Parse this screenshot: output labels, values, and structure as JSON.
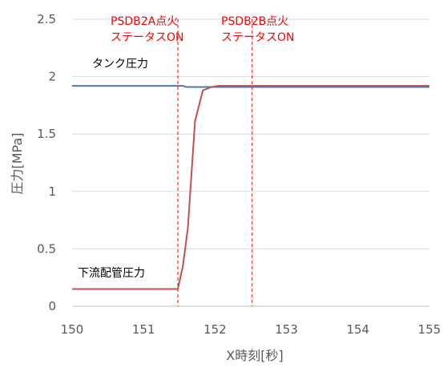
{
  "chart_data": {
    "type": "line",
    "xlabel": "X時刻[秒]",
    "ylabel": "圧力[MPa]",
    "xlim": [
      150,
      155
    ],
    "ylim": [
      0,
      2.5
    ],
    "x_ticks": [
      "150",
      "151",
      "152",
      "153",
      "154",
      "155"
    ],
    "y_ticks": [
      "0",
      "0.5",
      "1",
      "1.5",
      "2",
      "2.5"
    ],
    "grid": "horizontal",
    "series": [
      {
        "name": "タンク圧力",
        "color": "#4a7ab0",
        "points": [
          [
            150,
            1.92
          ],
          [
            151.55,
            1.92
          ],
          [
            151.6,
            1.91
          ],
          [
            152,
            1.91
          ],
          [
            155,
            1.91
          ]
        ]
      },
      {
        "name": "下流配管圧力",
        "color": "#c0504d",
        "points": [
          [
            150,
            0.15
          ],
          [
            151.48,
            0.15
          ],
          [
            151.55,
            0.35
          ],
          [
            151.62,
            0.68
          ],
          [
            151.72,
            1.61
          ],
          [
            151.83,
            1.88
          ],
          [
            151.95,
            1.91
          ],
          [
            152.05,
            1.92
          ],
          [
            155,
            1.92
          ]
        ]
      }
    ],
    "events": [
      {
        "x": 151.48,
        "label": [
          "PSDB2A点火",
          "ステータスON"
        ],
        "color": "#ff0000"
      },
      {
        "x": 152.52,
        "label": [
          "PSDB2B点火",
          "ステータスON"
        ],
        "color": "#ff0000"
      }
    ]
  }
}
